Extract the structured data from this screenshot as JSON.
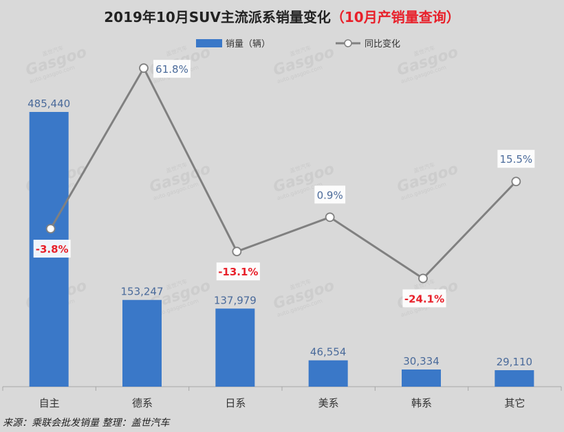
{
  "chart_data": {
    "type": "bar",
    "title": "2019年10月SUV主流派系销量变化",
    "title_accent": "（10月产销量查询）",
    "categories": [
      "自主",
      "德系",
      "日系",
      "美系",
      "韩系",
      "其它"
    ],
    "series": [
      {
        "name": "销量（辆）",
        "type": "bar",
        "values": [
          485440,
          153247,
          137979,
          46554,
          30334,
          29110
        ],
        "labels": [
          "485,440",
          "153,247",
          "137,979",
          "46,554",
          "30,334",
          "29,110"
        ]
      },
      {
        "name": "同比变化",
        "type": "line",
        "values": [
          -3.8,
          61.8,
          -13.1,
          0.9,
          -24.1,
          15.5
        ],
        "labels": [
          "-3.8%",
          "61.8%",
          "-13.1%",
          "0.9%",
          "-24.1%",
          "15.5%"
        ]
      }
    ],
    "bar_ylim": [
      0,
      500000
    ],
    "line_ylim": [
      -60,
      70
    ],
    "legend_position": "top-center"
  },
  "source": "来源：乘联会批发销量  整理：盖世汽车",
  "watermark": {
    "brand": "Gasgoo",
    "cn": "盖世汽车",
    "url": "auto.gasgoo.com"
  },
  "colors": {
    "background": "#d9d9d9",
    "bar": "#3a78c8",
    "line": "#808080",
    "negative": "#e8202a",
    "positive_label": "#4a6a9a"
  }
}
